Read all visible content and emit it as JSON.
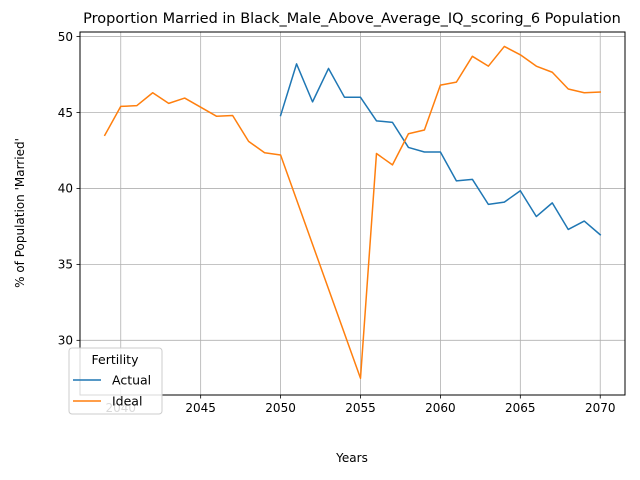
{
  "chart_data": {
    "type": "line",
    "title": "Proportion Married in Black_Male_Above_Average_IQ_scoring_6 Population",
    "xlabel": "Years",
    "ylabel": "% of Population 'Married'",
    "xlim": [
      2037.45,
      2071.55
    ],
    "ylim": [
      26.4,
      50.3
    ],
    "xticks": [
      2040,
      2045,
      2050,
      2055,
      2060,
      2065,
      2070
    ],
    "yticks": [
      30,
      35,
      40,
      45,
      50
    ],
    "grid": true,
    "legend": {
      "title": "Fertility",
      "placement": "lower-left"
    },
    "series": [
      {
        "name": "Actual",
        "color": "#1f77b4",
        "x": [
          2050,
          2051,
          2052,
          2053,
          2054,
          2055,
          2056,
          2057,
          2058,
          2059,
          2060,
          2061,
          2062,
          2063,
          2064,
          2065,
          2066,
          2067,
          2068,
          2069,
          2070
        ],
        "y": [
          44.8,
          48.2,
          45.7,
          47.9,
          46.0,
          46.0,
          44.45,
          44.35,
          42.7,
          42.4,
          42.4,
          40.5,
          40.6,
          38.95,
          39.1,
          39.85,
          38.15,
          39.05,
          37.3,
          37.85,
          36.95
        ]
      },
      {
        "name": "Ideal",
        "color": "#ff7f0e",
        "x": [
          2039,
          2040,
          2041,
          2042,
          2043,
          2044,
          2045,
          2046,
          2047,
          2048,
          2049,
          2050,
          2055,
          2056,
          2057,
          2058,
          2059,
          2060,
          2061,
          2062,
          2063,
          2064,
          2065,
          2066,
          2067,
          2068,
          2069,
          2070
        ],
        "y": [
          43.5,
          45.4,
          45.45,
          46.3,
          45.6,
          45.95,
          45.35,
          44.75,
          44.8,
          43.1,
          42.35,
          42.2,
          27.5,
          42.3,
          41.55,
          43.6,
          43.85,
          46.8,
          47.0,
          48.7,
          48.05,
          49.35,
          48.8,
          48.05,
          47.65,
          46.55,
          46.3,
          46.35
        ]
      }
    ]
  }
}
